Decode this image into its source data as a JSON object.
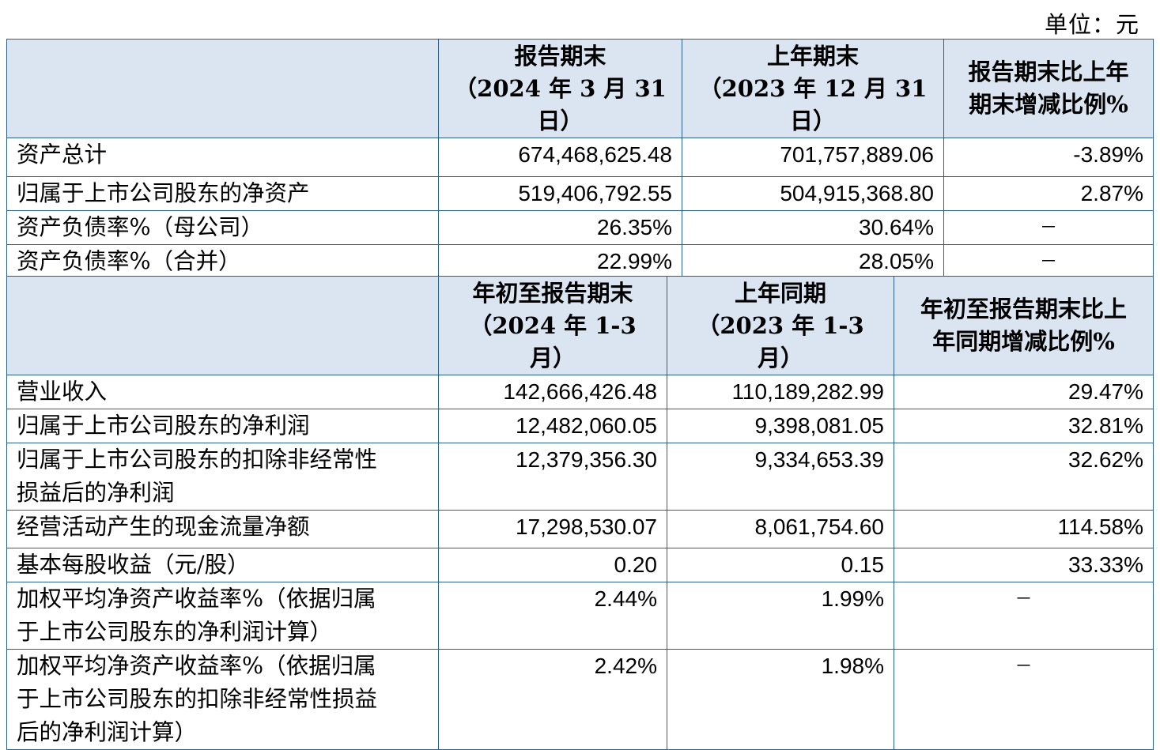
{
  "unit_label": "单位：元",
  "table1": {
    "header": [
      "",
      "报告期末\n（2024 年 3 月 31\n日）",
      "上年期末\n（2023 年 12 月 31\n日）",
      "报告期末比上年\n期末增减比例%"
    ],
    "rows": [
      {
        "label": "资产总计",
        "current": "674,468,625.48",
        "previous": "701,757,889.06",
        "change": "-3.89%"
      },
      {
        "label": "归属于上市公司股东的净资产",
        "current": "519,406,792.55",
        "previous": "504,915,368.80",
        "change": "2.87%"
      },
      {
        "label": "资产负债率%（母公司）",
        "current": "26.35%",
        "previous": "30.64%",
        "change": "－"
      },
      {
        "label": "资产负债率%（合并）",
        "current": "22.99%",
        "previous": "28.05%",
        "change": "－"
      }
    ]
  },
  "table2": {
    "header": [
      "",
      "年初至报告期末\n（2024 年 1-3\n月）",
      "上年同期\n（2023 年 1-3\n月）",
      "年初至报告期末比上\n年同期增减比例%"
    ],
    "rows": [
      {
        "label": "营业收入",
        "current": "142,666,426.48",
        "previous": "110,189,282.99",
        "change": "29.47%"
      },
      {
        "label": "归属于上市公司股东的净利润",
        "current": "12,482,060.05",
        "previous": "9,398,081.05",
        "change": "32.81%"
      },
      {
        "label": "归属于上市公司股东的扣除非经常性\n损益后的净利润",
        "current": "12,379,356.30",
        "previous": "9,334,653.39",
        "change": "32.62%"
      },
      {
        "label": "经营活动产生的现金流量净额",
        "current": "17,298,530.07",
        "previous": "8,061,754.60",
        "change": "114.58%"
      },
      {
        "label": "基本每股收益（元/股）",
        "current": "0.20",
        "previous": "0.15",
        "change": "33.33%"
      },
      {
        "label": "加权平均净资产收益率%（依据归属\n于上市公司股东的净利润计算）",
        "current": "2.44%",
        "previous": "1.99%",
        "change": "－"
      },
      {
        "label": "加权平均净资产收益率%（依据归属\n于上市公司股东的扣除非经常性损益\n后的净利润计算）",
        "current": "2.42%",
        "previous": "1.98%",
        "change": "－"
      }
    ]
  }
}
